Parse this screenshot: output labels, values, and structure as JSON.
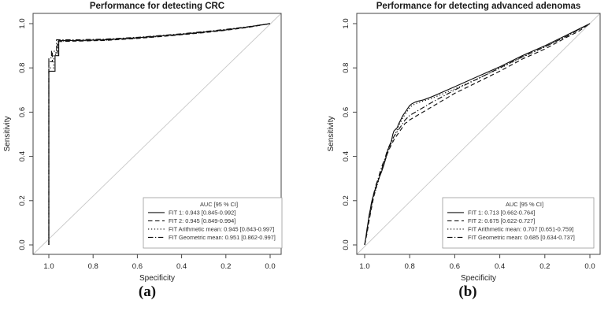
{
  "figure": {
    "panel_a_label": "(a)",
    "panel_b_label": "(b)"
  },
  "colors": {
    "curve": "#111111",
    "axis": "#444444",
    "diagonal": "#c8c8c8",
    "legend_border": "#9a9a9a",
    "text": "#222222"
  },
  "chart_data": [
    {
      "type": "line",
      "title": "Performance for detecting CRC",
      "xlabel": "Specificity",
      "ylabel": "Sensitivity",
      "x_axis_reversed": true,
      "xlim": [
        1.0,
        0.0
      ],
      "ylim": [
        0.0,
        1.0
      ],
      "x_tick_labels": [
        "1.0",
        "0.8",
        "0.6",
        "0.4",
        "0.2",
        "0.0"
      ],
      "y_tick_labels": [
        "0.0",
        "0.2",
        "0.4",
        "0.6",
        "0.8",
        "1.0"
      ],
      "grid": false,
      "reference_line": "diagonal",
      "legend": {
        "position": "bottom-right",
        "title": "AUC [95 % CI]",
        "entries": [
          {
            "label": "FIT 1: 0.943 [0.845-0.992]",
            "style": "solid"
          },
          {
            "label": "FIT 2: 0.945 [0.849-0.994]",
            "style": "dashed"
          },
          {
            "label": "FIT Arithmetic mean: 0.945 [0.843-0.997]",
            "style": "dotted"
          },
          {
            "label": "FIT Geometric mean: 0.951 [0.862-0.997]",
            "style": "dashdot"
          }
        ]
      },
      "series": [
        {
          "name": "FIT 1",
          "auc": 0.943,
          "ci": "0.845-0.992",
          "style": "solid",
          "points": [
            [
              1.0,
              0.0
            ],
            [
              1.0,
              0.785
            ],
            [
              0.972,
              0.785
            ],
            [
              0.972,
              0.855
            ],
            [
              0.955,
              0.855
            ],
            [
              0.955,
              0.924
            ],
            [
              0.87,
              0.924
            ],
            [
              0.75,
              0.927
            ],
            [
              0.6,
              0.936
            ],
            [
              0.5,
              0.944
            ],
            [
              0.4,
              0.952
            ],
            [
              0.3,
              0.962
            ],
            [
              0.2,
              0.972
            ],
            [
              0.1,
              0.985
            ],
            [
              0.0,
              1.0
            ]
          ]
        },
        {
          "name": "FIT 2",
          "auc": 0.945,
          "ci": "0.849-0.994",
          "style": "dashed",
          "points": [
            [
              1.0,
              0.0
            ],
            [
              1.0,
              0.828
            ],
            [
              0.984,
              0.828
            ],
            [
              0.984,
              0.868
            ],
            [
              0.962,
              0.868
            ],
            [
              0.962,
              0.919
            ],
            [
              0.87,
              0.921
            ],
            [
              0.75,
              0.924
            ],
            [
              0.6,
              0.933
            ],
            [
              0.5,
              0.941
            ],
            [
              0.4,
              0.95
            ],
            [
              0.3,
              0.959
            ],
            [
              0.2,
              0.97
            ],
            [
              0.1,
              0.983
            ],
            [
              0.0,
              1.0
            ]
          ]
        },
        {
          "name": "FIT Arithmetic mean",
          "auc": 0.945,
          "ci": "0.843-0.997",
          "style": "dotted",
          "points": [
            [
              1.0,
              0.0
            ],
            [
              1.0,
              0.8
            ],
            [
              0.978,
              0.8
            ],
            [
              0.978,
              0.86
            ],
            [
              0.958,
              0.86
            ],
            [
              0.958,
              0.921
            ],
            [
              0.87,
              0.922
            ],
            [
              0.75,
              0.925
            ],
            [
              0.6,
              0.934
            ],
            [
              0.5,
              0.942
            ],
            [
              0.4,
              0.951
            ],
            [
              0.3,
              0.96
            ],
            [
              0.2,
              0.971
            ],
            [
              0.1,
              0.984
            ],
            [
              0.0,
              1.0
            ]
          ]
        },
        {
          "name": "FIT Geometric mean",
          "auc": 0.951,
          "ci": "0.862-0.997",
          "style": "dashdot",
          "points": [
            [
              1.0,
              0.0
            ],
            [
              1.0,
              0.845
            ],
            [
              0.988,
              0.845
            ],
            [
              0.988,
              0.875
            ],
            [
              0.965,
              0.875
            ],
            [
              0.965,
              0.927
            ],
            [
              0.87,
              0.927
            ],
            [
              0.75,
              0.93
            ],
            [
              0.6,
              0.938
            ],
            [
              0.5,
              0.946
            ],
            [
              0.4,
              0.954
            ],
            [
              0.3,
              0.964
            ],
            [
              0.2,
              0.974
            ],
            [
              0.1,
              0.986
            ],
            [
              0.0,
              1.0
            ]
          ]
        }
      ]
    },
    {
      "type": "line",
      "title": "Performance for detecting advanced adenomas",
      "xlabel": "Specificity",
      "ylabel": "Sensitivity",
      "x_axis_reversed": true,
      "xlim": [
        1.0,
        0.0
      ],
      "ylim": [
        0.0,
        1.0
      ],
      "x_tick_labels": [
        "1.0",
        "0.8",
        "0.6",
        "0.4",
        "0.2",
        "0.0"
      ],
      "y_tick_labels": [
        "0.0",
        "0.2",
        "0.4",
        "0.6",
        "0.8",
        "1.0"
      ],
      "grid": false,
      "reference_line": "diagonal",
      "legend": {
        "position": "bottom-right",
        "title": "AUC [95 % CI]",
        "entries": [
          {
            "label": "FIT 1: 0.713 [0.662-0.764]",
            "style": "solid"
          },
          {
            "label": "FIT 2: 0.675 [0.622-0.727]",
            "style": "dashed"
          },
          {
            "label": "FIT Arithmetic mean: 0.707 [0.651-0.759]",
            "style": "dotted"
          },
          {
            "label": "FIT Geometric mean: 0.685 [0.634-0.737]",
            "style": "dashdot"
          }
        ]
      },
      "series": [
        {
          "name": "FIT 1",
          "auc": 0.713,
          "ci": "0.662-0.764",
          "style": "solid",
          "points": [
            [
              1.0,
              0.0
            ],
            [
              0.995,
              0.03
            ],
            [
              0.99,
              0.07
            ],
            [
              0.985,
              0.1
            ],
            [
              0.98,
              0.135
            ],
            [
              0.975,
              0.16
            ],
            [
              0.97,
              0.19
            ],
            [
              0.965,
              0.21
            ],
            [
              0.955,
              0.245
            ],
            [
              0.945,
              0.28
            ],
            [
              0.935,
              0.305
            ],
            [
              0.925,
              0.33
            ],
            [
              0.915,
              0.36
            ],
            [
              0.905,
              0.395
            ],
            [
              0.9,
              0.42
            ],
            [
              0.895,
              0.435
            ],
            [
              0.885,
              0.455
            ],
            [
              0.88,
              0.475
            ],
            [
              0.875,
              0.5
            ],
            [
              0.87,
              0.515
            ],
            [
              0.865,
              0.52
            ],
            [
              0.855,
              0.53
            ],
            [
              0.85,
              0.545
            ],
            [
              0.84,
              0.565
            ],
            [
              0.83,
              0.585
            ],
            [
              0.82,
              0.6
            ],
            [
              0.81,
              0.615
            ],
            [
              0.8,
              0.63
            ],
            [
              0.79,
              0.638
            ],
            [
              0.77,
              0.648
            ],
            [
              0.74,
              0.655
            ],
            [
              0.7,
              0.67
            ],
            [
              0.6,
              0.715
            ],
            [
              0.5,
              0.76
            ],
            [
              0.4,
              0.805
            ],
            [
              0.3,
              0.855
            ],
            [
              0.2,
              0.9
            ],
            [
              0.1,
              0.95
            ],
            [
              0.05,
              0.975
            ],
            [
              0.0,
              1.0
            ]
          ]
        },
        {
          "name": "FIT 2",
          "auc": 0.675,
          "ci": "0.622-0.727",
          "style": "dashed",
          "points": [
            [
              1.0,
              0.0
            ],
            [
              0.99,
              0.05
            ],
            [
              0.98,
              0.11
            ],
            [
              0.97,
              0.165
            ],
            [
              0.96,
              0.215
            ],
            [
              0.95,
              0.255
            ],
            [
              0.94,
              0.29
            ],
            [
              0.93,
              0.325
            ],
            [
              0.92,
              0.355
            ],
            [
              0.91,
              0.38
            ],
            [
              0.9,
              0.41
            ],
            [
              0.89,
              0.435
            ],
            [
              0.88,
              0.455
            ],
            [
              0.87,
              0.475
            ],
            [
              0.86,
              0.49
            ],
            [
              0.85,
              0.505
            ],
            [
              0.84,
              0.52
            ],
            [
              0.83,
              0.535
            ],
            [
              0.82,
              0.55
            ],
            [
              0.81,
              0.555
            ],
            [
              0.8,
              0.565
            ],
            [
              0.75,
              0.595
            ],
            [
              0.7,
              0.625
            ],
            [
              0.6,
              0.685
            ],
            [
              0.5,
              0.735
            ],
            [
              0.4,
              0.785
            ],
            [
              0.3,
              0.84
            ],
            [
              0.2,
              0.885
            ],
            [
              0.1,
              0.94
            ],
            [
              0.05,
              0.965
            ],
            [
              0.0,
              1.0
            ]
          ]
        },
        {
          "name": "FIT Arithmetic mean",
          "auc": 0.707,
          "ci": "0.651-0.759",
          "style": "dotted",
          "points": [
            [
              1.0,
              0.0
            ],
            [
              0.995,
              0.028
            ],
            [
              0.99,
              0.065
            ],
            [
              0.985,
              0.095
            ],
            [
              0.98,
              0.13
            ],
            [
              0.97,
              0.185
            ],
            [
              0.96,
              0.22
            ],
            [
              0.95,
              0.25
            ],
            [
              0.94,
              0.285
            ],
            [
              0.93,
              0.32
            ],
            [
              0.92,
              0.35
            ],
            [
              0.91,
              0.385
            ],
            [
              0.9,
              0.41
            ],
            [
              0.89,
              0.44
            ],
            [
              0.88,
              0.465
            ],
            [
              0.87,
              0.49
            ],
            [
              0.86,
              0.51
            ],
            [
              0.85,
              0.535
            ],
            [
              0.84,
              0.555
            ],
            [
              0.83,
              0.575
            ],
            [
              0.82,
              0.59
            ],
            [
              0.81,
              0.605
            ],
            [
              0.8,
              0.62
            ],
            [
              0.79,
              0.63
            ],
            [
              0.77,
              0.64
            ],
            [
              0.74,
              0.65
            ],
            [
              0.7,
              0.663
            ],
            [
              0.6,
              0.705
            ],
            [
              0.5,
              0.75
            ],
            [
              0.4,
              0.798
            ],
            [
              0.3,
              0.848
            ],
            [
              0.2,
              0.895
            ],
            [
              0.1,
              0.945
            ],
            [
              0.0,
              1.0
            ]
          ]
        },
        {
          "name": "FIT Geometric mean",
          "auc": 0.685,
          "ci": "0.634-0.737",
          "style": "dashdot",
          "points": [
            [
              1.0,
              0.0
            ],
            [
              0.99,
              0.06
            ],
            [
              0.98,
              0.12
            ],
            [
              0.97,
              0.175
            ],
            [
              0.96,
              0.23
            ],
            [
              0.95,
              0.27
            ],
            [
              0.94,
              0.3
            ],
            [
              0.93,
              0.335
            ],
            [
              0.92,
              0.365
            ],
            [
              0.91,
              0.39
            ],
            [
              0.9,
              0.425
            ],
            [
              0.89,
              0.45
            ],
            [
              0.88,
              0.47
            ],
            [
              0.87,
              0.49
            ],
            [
              0.86,
              0.505
            ],
            [
              0.85,
              0.52
            ],
            [
              0.84,
              0.535
            ],
            [
              0.83,
              0.55
            ],
            [
              0.82,
              0.565
            ],
            [
              0.8,
              0.585
            ],
            [
              0.75,
              0.615
            ],
            [
              0.7,
              0.645
            ],
            [
              0.6,
              0.7
            ],
            [
              0.5,
              0.75
            ],
            [
              0.4,
              0.8
            ],
            [
              0.3,
              0.85
            ],
            [
              0.2,
              0.895
            ],
            [
              0.1,
              0.945
            ],
            [
              0.0,
              1.0
            ]
          ]
        }
      ]
    }
  ]
}
